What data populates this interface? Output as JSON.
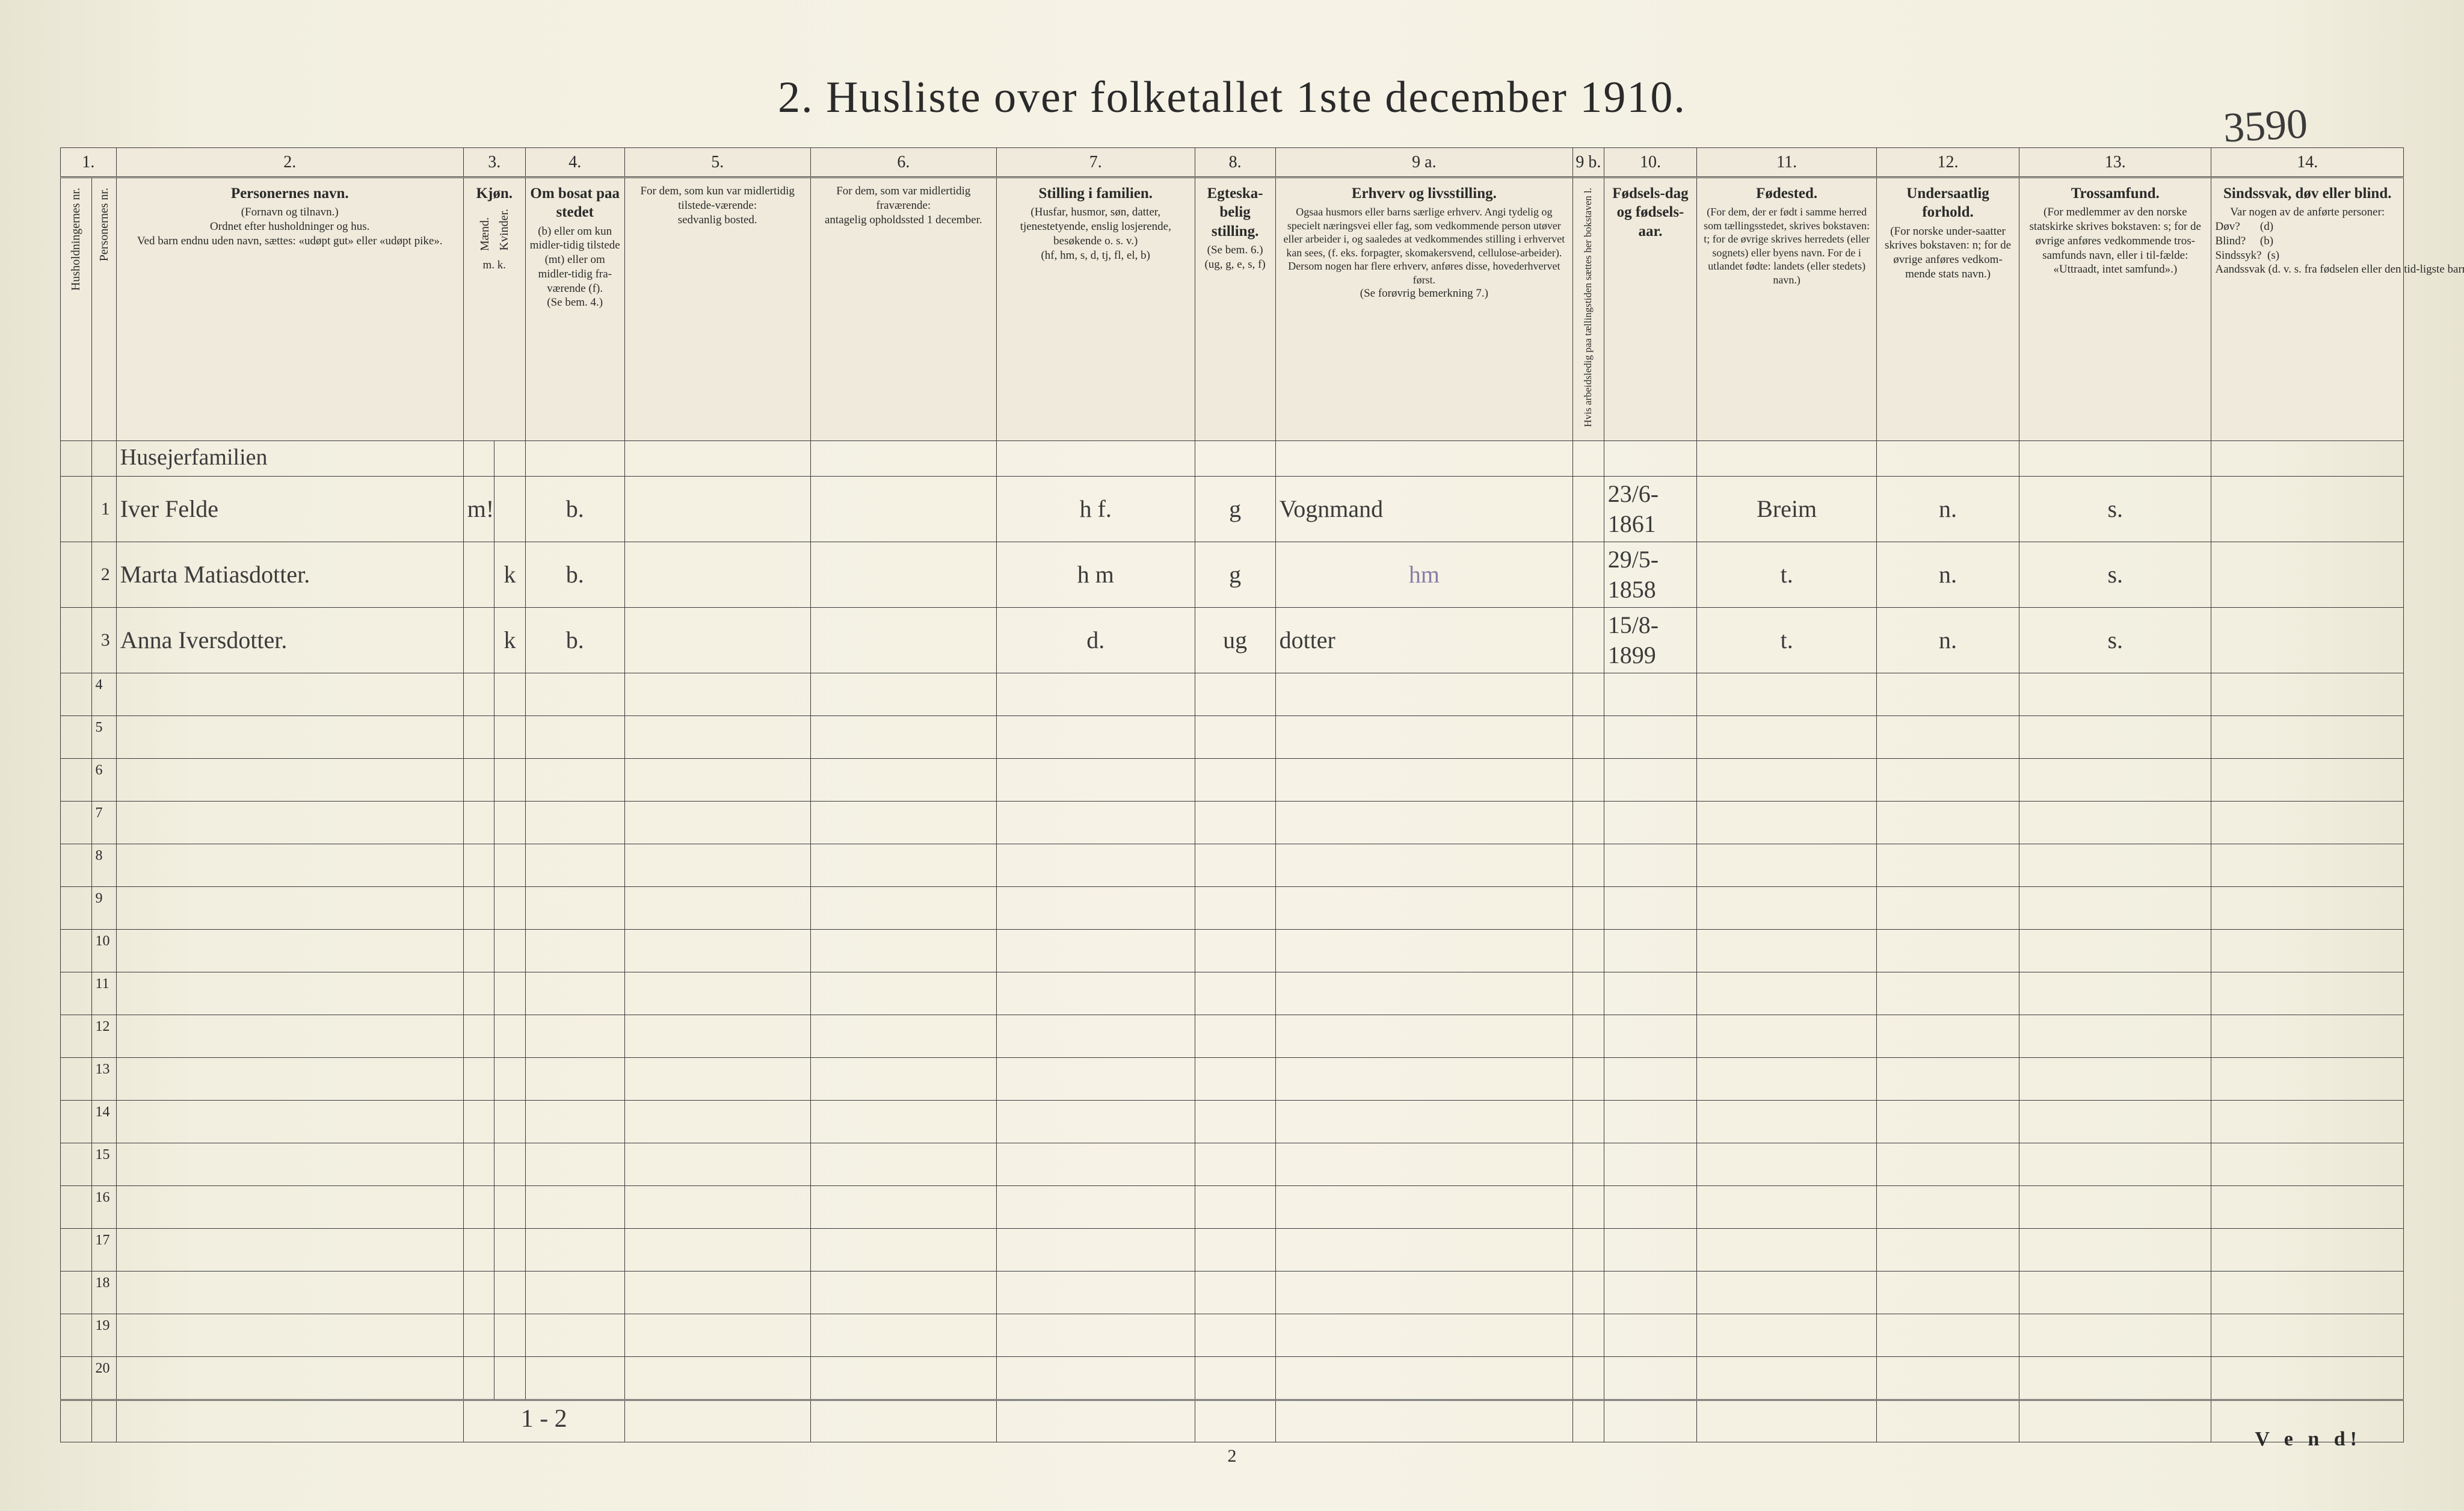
{
  "page_number_handwritten": "3590",
  "title": "2.  Husliste over folketallet 1ste december 1910.",
  "footer_page": "2",
  "vend": "V e n d!",
  "column_numbers": [
    "1.",
    "",
    "2.",
    "3.",
    "4.",
    "5.",
    "6.",
    "7.",
    "8.",
    "9 a.",
    "9 b.",
    "10.",
    "11.",
    "12.",
    "13.",
    "14."
  ],
  "headers": {
    "hus": "Husholdningernes nr.",
    "per": "Personernes nr.",
    "name": {
      "title": "Personernes navn.",
      "sub1": "(Fornavn og tilnavn.)",
      "sub2": "Ordnet efter husholdninger og hus.",
      "sub3": "Ved barn endnu uden navn, sættes: «udøpt gut» eller «udøpt pike»."
    },
    "kjon": {
      "title": "Kjøn.",
      "m": "Mænd.",
      "k": "Kvinder.",
      "foot": "m.  k."
    },
    "bosat": {
      "title": "Om bosat paa stedet",
      "sub": "(b) eller om kun midler-tidig tilstede (mt) eller om midler-tidig fra-værende (f).",
      "foot": "(Se bem. 4.)"
    },
    "midl": {
      "title": "For dem, som kun var midlertidig tilstede-værende:",
      "sub": "sedvanlig bosted."
    },
    "frav": {
      "title": "For dem, som var midlertidig fraværende:",
      "sub": "antagelig opholdssted 1 december."
    },
    "still": {
      "title": "Stilling i familien.",
      "sub": "(Husfar, husmor, søn, datter, tjenestetyende, enslig losjerende, besøkende o. s. v.)",
      "foot": "(hf, hm, s, d, tj, fl, el, b)"
    },
    "egt": {
      "title": "Egteska-belig stilling.",
      "sub": "(Se bem. 6.)",
      "foot": "(ug, g, e, s, f)"
    },
    "erhv": {
      "title": "Erhverv og livsstilling.",
      "sub": "Ogsaa husmors eller barns særlige erhverv. Angi tydelig og specielt næringsvei eller fag, som vedkommende person utøver eller arbeider i, og saaledes at vedkommendes stilling i erhvervet kan sees, (f. eks. forpagter, skomakersvend, cellulose-arbeider). Dersom nogen har flere erhverv, anføres disse, hovederhvervet først.",
      "foot": "(Se forøvrig bemerkning 7.)"
    },
    "arb": "Hvis arbeidsledig paa tællingstiden sættes her bokstaven l.",
    "fdag": {
      "title": "Fødsels-dag og fødsels-aar."
    },
    "fsted": {
      "title": "Fødested.",
      "sub": "(For dem, der er født i samme herred som tællingsstedet, skrives bokstaven: t; for de øvrige skrives herredets (eller sognets) eller byens navn. For de i utlandet fødte: landets (eller stedets) navn.)"
    },
    "under": {
      "title": "Undersaatlig forhold.",
      "sub": "(For norske under-saatter skrives bokstaven: n; for de øvrige anføres vedkom-mende stats navn.)"
    },
    "tros": {
      "title": "Trossamfund.",
      "sub": "(For medlemmer av den norske statskirke skrives bokstaven: s; for de øvrige anføres vedkommende tros-samfunds navn, eller i til-fælde: «Uttraadt, intet samfund».)"
    },
    "sind": {
      "title": "Sindssvak, døv eller blind.",
      "sub": "Var nogen av de anførte personer:",
      "opts": "Døv?       (d)\nBlind?     (b)\nSindssyk?  (s)\nAandssvak (d. v. s. fra fødselen eller den tid-ligste barndom)?  (a)"
    }
  },
  "section_note": "Husejerfamilien",
  "rows": [
    {
      "n": "1",
      "name": "Iver  Felde",
      "m": "m!",
      "k": "",
      "bosat": "b.",
      "midl": "",
      "frav": "",
      "still": "h f.",
      "egt": "g",
      "erhv": "Vognmand",
      "arb": "",
      "fdag": "23/6-1861",
      "fsted": "Breim",
      "under": "n.",
      "tros": "s.",
      "sind": ""
    },
    {
      "n": "2",
      "name": "Marta  Matiasdotter.",
      "m": "",
      "k": "k",
      "bosat": "b.",
      "midl": "",
      "frav": "",
      "still": "h m",
      "egt": "g",
      "erhv_light": "hm",
      "arb": "",
      "fdag": "29/5-1858",
      "fsted": "t.",
      "under": "n.",
      "tros": "s.",
      "sind": ""
    },
    {
      "n": "3",
      "name": "Anna  Iversdotter.",
      "m": "",
      "k": "k",
      "bosat": "b.",
      "midl": "",
      "frav": "",
      "still": "d.",
      "egt": "ug",
      "erhv": "dotter",
      "arb": "",
      "fdag": "15/8-1899",
      "fsted": "t.",
      "under": "n.",
      "tros": "s.",
      "sind": ""
    }
  ],
  "empty_row_numbers": [
    "4",
    "5",
    "6",
    "7",
    "8",
    "9",
    "10",
    "11",
    "12",
    "13",
    "14",
    "15",
    "16",
    "17",
    "18",
    "19",
    "20"
  ],
  "tally": "1 - 2",
  "colors": {
    "page_bg_left": "#e8e4d2",
    "page_bg_mid": "#f6f3e6",
    "ink": "#2a2a2a",
    "rule": "#3a3a3a",
    "hand": "#3b3b3b",
    "hand_light": "#8a7ea6",
    "handnum": "#9a8a70"
  }
}
